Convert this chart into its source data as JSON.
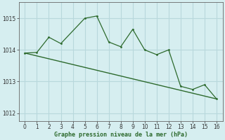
{
  "line1_x": [
    0,
    1,
    2,
    3,
    5,
    6,
    7,
    8,
    9,
    10,
    11,
    12,
    13,
    14,
    15,
    16
  ],
  "line1_y": [
    1013.9,
    1013.92,
    1014.4,
    1014.2,
    1015.0,
    1015.07,
    1014.25,
    1014.1,
    1014.65,
    1014.0,
    1013.85,
    1014.0,
    1012.85,
    1012.75,
    1012.9,
    1012.45
  ],
  "line2_x": [
    0,
    16
  ],
  "line2_y": [
    1013.9,
    1012.45
  ],
  "line_color": "#2d6a2d",
  "bg_color": "#d6eef0",
  "grid_color": "#b8d8dc",
  "xlabel": "Graphe pression niveau de la mer (hPa)",
  "ylim": [
    1011.75,
    1015.5
  ],
  "xlim": [
    -0.5,
    16.5
  ],
  "yticks": [
    1012,
    1013,
    1014,
    1015
  ],
  "xticks": [
    0,
    1,
    2,
    3,
    4,
    5,
    6,
    7,
    8,
    9,
    10,
    11,
    12,
    13,
    14,
    15,
    16
  ]
}
